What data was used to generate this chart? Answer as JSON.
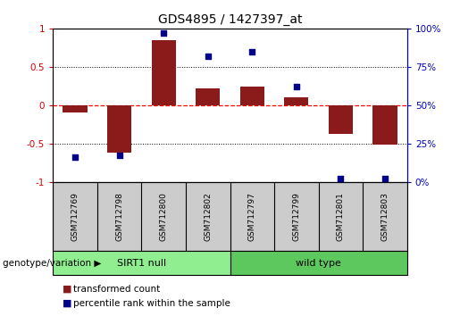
{
  "title": "GDS4895 / 1427397_at",
  "samples": [
    "GSM712769",
    "GSM712798",
    "GSM712800",
    "GSM712802",
    "GSM712797",
    "GSM712799",
    "GSM712801",
    "GSM712803"
  ],
  "bar_values": [
    -0.1,
    -0.62,
    0.85,
    0.22,
    0.24,
    0.1,
    -0.38,
    -0.52
  ],
  "scatter_values": [
    0.16,
    0.17,
    0.97,
    0.82,
    0.85,
    0.62,
    0.02,
    0.02
  ],
  "bar_color": "#8B1A1A",
  "scatter_color": "#00008B",
  "ylim_left": [
    -1.0,
    1.0
  ],
  "yticks_left": [
    -1.0,
    -0.5,
    0.0,
    0.5,
    1.0
  ],
  "ytick_labels_left": [
    "-1",
    "-0.5",
    "0",
    "0.5",
    "1"
  ],
  "ytick_labels_right": [
    "0%",
    "25%",
    "50%",
    "75%",
    "100%"
  ],
  "group1_label": "SIRT1 null",
  "group2_label": "wild type",
  "group1_count": 4,
  "group2_count": 4,
  "group1_color": "#90EE90",
  "group2_color": "#5DC85D",
  "genotype_label": "genotype/variation",
  "legend_bar_label": "transformed count",
  "legend_scatter_label": "percentile rank within the sample",
  "title_fontsize": 10,
  "axis_fontsize": 7.5,
  "tick_label_fontsize": 7,
  "sample_label_fontsize": 6.5,
  "legend_fontsize": 7.5,
  "genotype_fontsize": 7.5,
  "group_label_fontsize": 8
}
